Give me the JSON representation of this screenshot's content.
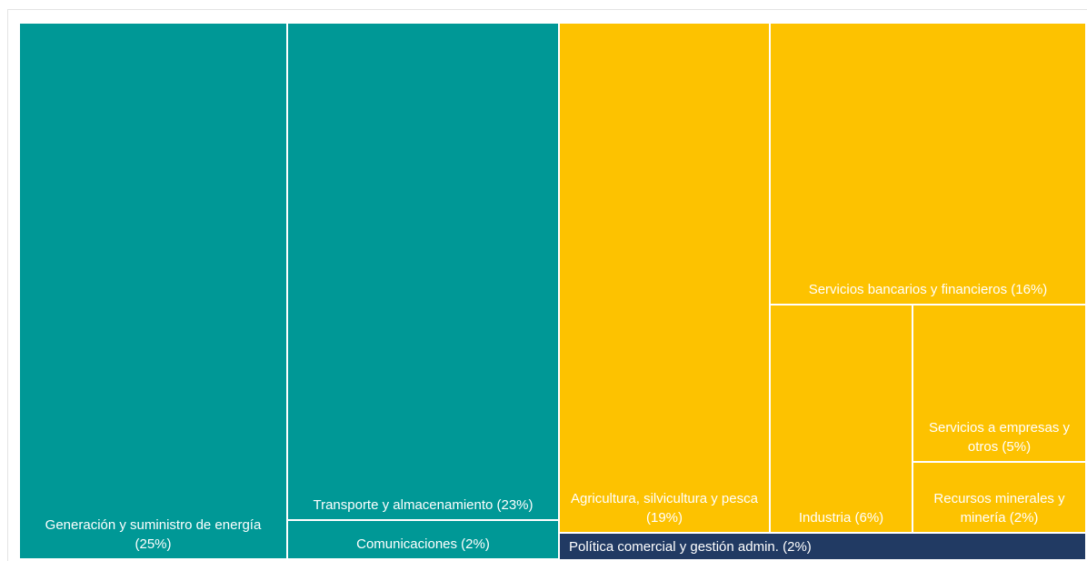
{
  "chart_data": {
    "type": "treemap",
    "colors": {
      "teal": "#009896",
      "amber": "#FDC200",
      "navy": "#213A63"
    },
    "groups": [
      {
        "color": "#009896",
        "items": [
          {
            "id": "energia",
            "label": "Generación y suministro de energía (25%)",
            "value": 25
          },
          {
            "id": "transporte",
            "label": "Transporte y almacenamiento (23%)",
            "value": 23
          },
          {
            "id": "comunicaciones",
            "label": "Comunicaciones (2%)",
            "value": 2
          }
        ]
      },
      {
        "color": "#FDC200",
        "items": [
          {
            "id": "agricultura",
            "label": "Agricultura, silvicultura y pesca (19%)",
            "value": 19
          },
          {
            "id": "bancarios",
            "label": "Servicios bancarios y financieros (16%)",
            "value": 16
          },
          {
            "id": "industria",
            "label": "Industria (6%)",
            "value": 6
          },
          {
            "id": "empresas",
            "label": "Servicios a empresas y otros (5%)",
            "value": 5
          },
          {
            "id": "minerales",
            "label": "Recursos minerales y minería (2%)",
            "value": 2
          }
        ]
      },
      {
        "color": "#213A63",
        "items": [
          {
            "id": "politica",
            "label": "Política comercial y gestión admin. (2%)",
            "value": 2
          }
        ]
      }
    ]
  }
}
